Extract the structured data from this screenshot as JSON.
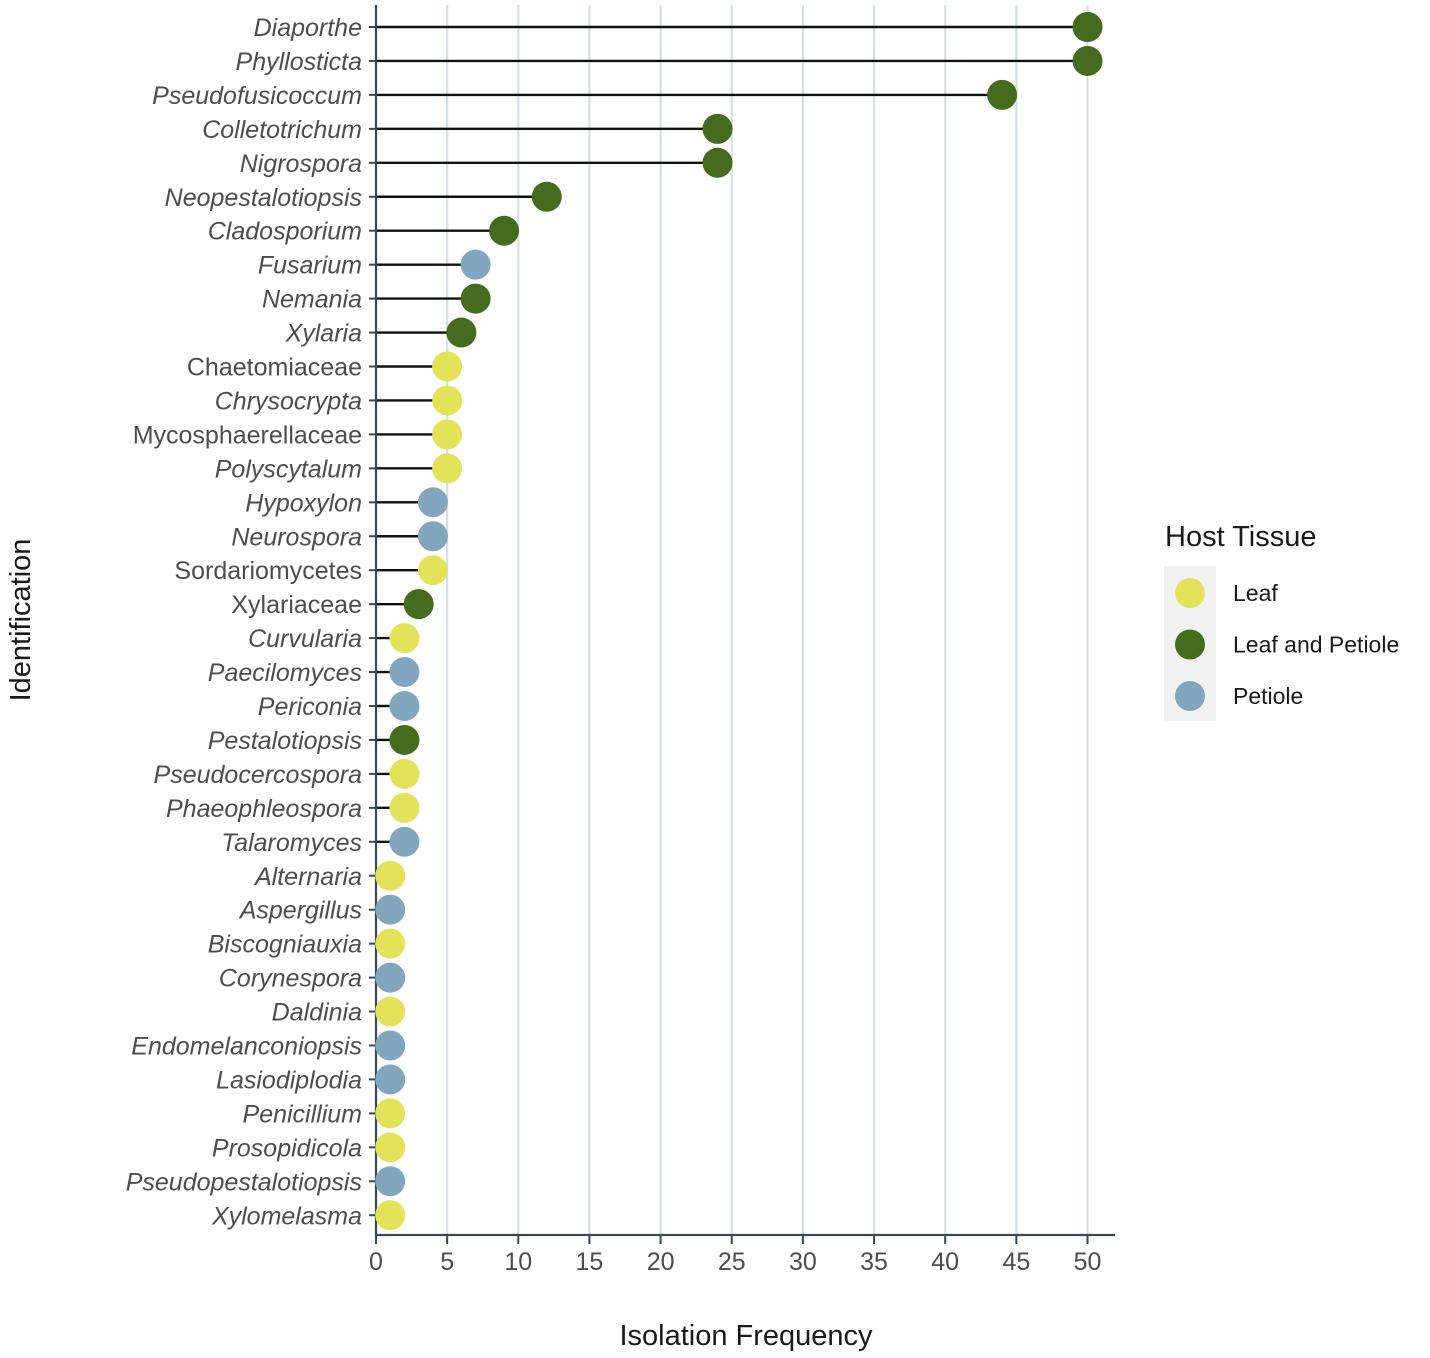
{
  "chart_data": {
    "type": "lollipop",
    "xlabel": "Isolation Frequency",
    "ylabel": "Identification",
    "xlim": [
      0,
      52
    ],
    "xticks": [
      0,
      5,
      10,
      15,
      20,
      25,
      30,
      35,
      40,
      45,
      50
    ],
    "grid": "vertical",
    "legend": {
      "title": "Host Tissue",
      "placement": "right",
      "entries": [
        {
          "key": "Leaf",
          "label": "Leaf",
          "color": "#e3e35a"
        },
        {
          "key": "Leaf and Petiole",
          "label": "Leaf and Petiole",
          "color": "#446b1e"
        },
        {
          "key": "Petiole",
          "label": "Petiole",
          "color": "#82a6bd"
        }
      ]
    },
    "points": [
      {
        "label": "Diaporthe",
        "italic": true,
        "value": 50,
        "tissue": "Leaf and Petiole"
      },
      {
        "label": "Phyllosticta",
        "italic": true,
        "value": 50,
        "tissue": "Leaf and Petiole"
      },
      {
        "label": "Pseudofusicoccum",
        "italic": true,
        "value": 44,
        "tissue": "Leaf and Petiole"
      },
      {
        "label": "Colletotrichum",
        "italic": true,
        "value": 24,
        "tissue": "Leaf and Petiole"
      },
      {
        "label": "Nigrospora",
        "italic": true,
        "value": 24,
        "tissue": "Leaf and Petiole"
      },
      {
        "label": "Neopestalotiopsis",
        "italic": true,
        "value": 12,
        "tissue": "Leaf and Petiole"
      },
      {
        "label": "Cladosporium",
        "italic": true,
        "value": 9,
        "tissue": "Leaf and Petiole"
      },
      {
        "label": "Fusarium",
        "italic": true,
        "value": 7,
        "tissue": "Petiole"
      },
      {
        "label": "Nemania",
        "italic": true,
        "value": 7,
        "tissue": "Leaf and Petiole"
      },
      {
        "label": "Xylaria",
        "italic": true,
        "value": 6,
        "tissue": "Leaf and Petiole"
      },
      {
        "label": "Chaetomiaceae",
        "italic": false,
        "value": 5,
        "tissue": "Leaf"
      },
      {
        "label": "Chrysocrypta",
        "italic": true,
        "value": 5,
        "tissue": "Leaf"
      },
      {
        "label": "Mycosphaerellaceae",
        "italic": false,
        "value": 5,
        "tissue": "Leaf"
      },
      {
        "label": "Polyscytalum",
        "italic": true,
        "value": 5,
        "tissue": "Leaf"
      },
      {
        "label": "Hypoxylon",
        "italic": true,
        "value": 4,
        "tissue": "Petiole"
      },
      {
        "label": "Neurospora",
        "italic": true,
        "value": 4,
        "tissue": "Petiole"
      },
      {
        "label": "Sordariomycetes",
        "italic": false,
        "value": 4,
        "tissue": "Leaf"
      },
      {
        "label": "Xylariaceae",
        "italic": false,
        "value": 3,
        "tissue": "Leaf and Petiole"
      },
      {
        "label": "Curvularia",
        "italic": true,
        "value": 2,
        "tissue": "Leaf"
      },
      {
        "label": "Paecilomyces",
        "italic": true,
        "value": 2,
        "tissue": "Petiole"
      },
      {
        "label": "Periconia",
        "italic": true,
        "value": 2,
        "tissue": "Petiole"
      },
      {
        "label": "Pestalotiopsis",
        "italic": true,
        "value": 2,
        "tissue": "Leaf and Petiole"
      },
      {
        "label": "Pseudocercospora",
        "italic": true,
        "value": 2,
        "tissue": "Leaf"
      },
      {
        "label": "Phaeophleospora",
        "italic": true,
        "value": 2,
        "tissue": "Leaf"
      },
      {
        "label": "Talaromyces",
        "italic": true,
        "value": 2,
        "tissue": "Petiole"
      },
      {
        "label": "Alternaria",
        "italic": true,
        "value": 1,
        "tissue": "Leaf"
      },
      {
        "label": "Aspergillus",
        "italic": true,
        "value": 1,
        "tissue": "Petiole"
      },
      {
        "label": "Biscogniauxia",
        "italic": true,
        "value": 1,
        "tissue": "Leaf"
      },
      {
        "label": "Corynespora",
        "italic": true,
        "value": 1,
        "tissue": "Petiole"
      },
      {
        "label": "Daldinia",
        "italic": true,
        "value": 1,
        "tissue": "Leaf"
      },
      {
        "label": "Endomelanconiopsis",
        "italic": true,
        "value": 1,
        "tissue": "Petiole"
      },
      {
        "label": "Lasiodiplodia",
        "italic": true,
        "value": 1,
        "tissue": "Petiole"
      },
      {
        "label": "Penicillium",
        "italic": true,
        "value": 1,
        "tissue": "Leaf"
      },
      {
        "label": "Prosopidicola",
        "italic": true,
        "value": 1,
        "tissue": "Leaf"
      },
      {
        "label": "Pseudopestalotiopsis",
        "italic": true,
        "value": 1,
        "tissue": "Petiole"
      },
      {
        "label": "Xylomelasma",
        "italic": true,
        "value": 1,
        "tissue": "Leaf"
      }
    ]
  }
}
